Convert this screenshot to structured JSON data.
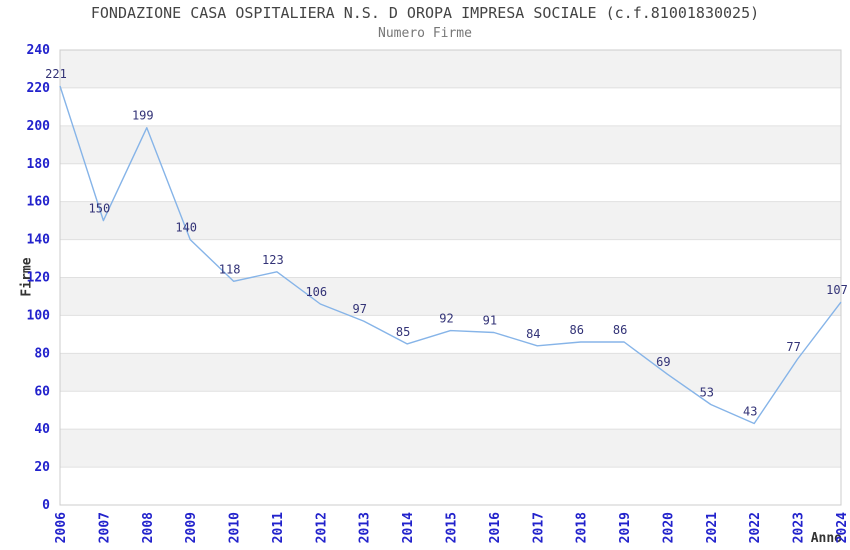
{
  "chart_data": {
    "type": "line",
    "title": "FONDAZIONE CASA OSPITALIERA N.S. D OROPA IMPRESA SOCIALE (c.f.81001830025)",
    "subtitle": "Numero Firme",
    "xlabel": "Anno",
    "ylabel": "Firme",
    "categories": [
      "2006",
      "2007",
      "2008",
      "2009",
      "2010",
      "2011",
      "2012",
      "2013",
      "2014",
      "2015",
      "2016",
      "2017",
      "2018",
      "2019",
      "2020",
      "2021",
      "2022",
      "2023",
      "2024"
    ],
    "values": [
      221,
      150,
      199,
      140,
      118,
      123,
      106,
      97,
      85,
      92,
      91,
      84,
      86,
      86,
      69,
      53,
      43,
      77,
      107
    ],
    "ylim": [
      0,
      240
    ],
    "ytick_step": 20,
    "yticks": [
      0,
      20,
      40,
      60,
      80,
      100,
      120,
      140,
      160,
      180,
      200,
      220,
      240
    ],
    "grid": "alternating-horizontal-bands",
    "legend_position": "none",
    "colors": {
      "line": "#86b4e8",
      "point_label": "#333377",
      "tick_label": "#2222cc",
      "band": "#f2f2f2",
      "gridline": "#e0e0e0",
      "plot_border": "#cccccc",
      "title": "#444444",
      "subtitle": "#777777",
      "axis_title": "#333333",
      "background": "#ffffff"
    }
  }
}
